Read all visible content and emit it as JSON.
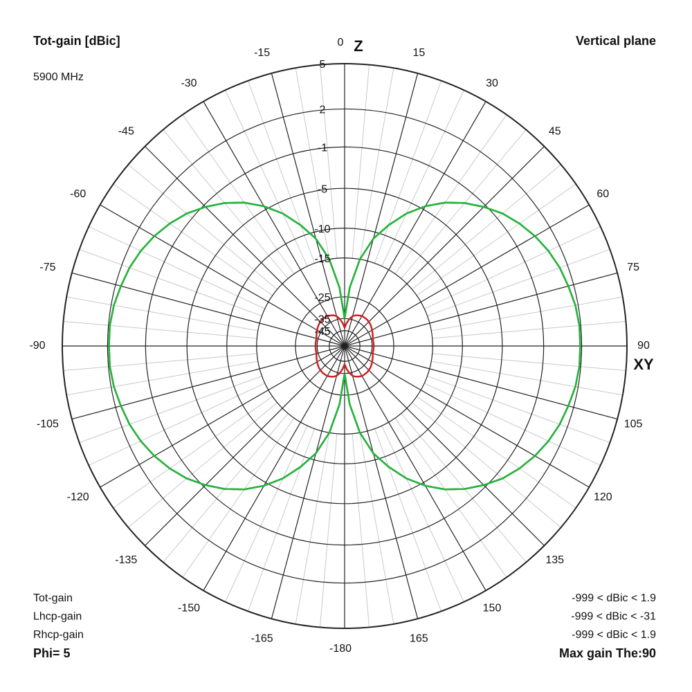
{
  "chart_data": {
    "type": "polar",
    "title": "Tot-gain [dBic]",
    "subtitle": "5900 MHz",
    "plane": "Vertical plane",
    "axis_labels": {
      "top": "Z",
      "right": "XY"
    },
    "rticks": [
      5,
      2,
      -1,
      -5,
      -10,
      -15,
      -25,
      -35,
      -45
    ],
    "thetaticks": [
      0,
      15,
      30,
      45,
      60,
      75,
      90,
      105,
      120,
      135,
      150,
      165,
      -180,
      -165,
      -150,
      -135,
      -120,
      -105,
      -90,
      -75,
      -60,
      -45,
      -30,
      -15
    ],
    "theta": [
      -180,
      -175,
      -170,
      -165,
      -160,
      -155,
      -150,
      -145,
      -140,
      -135,
      -130,
      -125,
      -120,
      -115,
      -110,
      -105,
      -100,
      -95,
      -90,
      -85,
      -80,
      -75,
      -70,
      -65,
      -60,
      -55,
      -50,
      -45,
      -40,
      -35,
      -30,
      -25,
      -20,
      -15,
      -10,
      -5,
      0,
      5,
      10,
      15,
      20,
      25,
      30,
      35,
      40,
      45,
      50,
      55,
      60,
      65,
      70,
      75,
      80,
      85,
      90,
      95,
      100,
      105,
      110,
      115,
      120,
      125,
      130,
      135,
      140,
      145,
      150,
      155,
      160,
      165,
      170,
      175,
      180
    ],
    "series": [
      {
        "name": "Rhcp-gain",
        "color": "#3340a8",
        "range": "-999 < dBic < 1.9",
        "values": [
          -35,
          -22,
          -15,
          -11,
          -8.5,
          -6.3,
          -4.6,
          -3.2,
          -2.1,
          -1.2,
          -0.4,
          0.2,
          0.7,
          1.1,
          1.4,
          1.6,
          1.8,
          1.9,
          1.9,
          1.9,
          1.8,
          1.6,
          1.4,
          1.1,
          0.7,
          0.2,
          -0.4,
          -1.2,
          -2.1,
          -3.2,
          -4.6,
          -6.3,
          -8.5,
          -11,
          -15,
          -22,
          -35,
          -22,
          -15,
          -11,
          -8.5,
          -6.3,
          -4.6,
          -3.2,
          -2.1,
          -1.2,
          -0.4,
          0.2,
          0.7,
          1.1,
          1.4,
          1.6,
          1.8,
          1.9,
          1.9,
          1.9,
          1.8,
          1.6,
          1.4,
          1.1,
          0.7,
          0.2,
          -0.4,
          -1.2,
          -2.1,
          -3.2,
          -4.6,
          -6.3,
          -8.5,
          -11,
          -15,
          -22,
          -35
        ]
      },
      {
        "name": "Lhcp-gain",
        "color": "#cc2222",
        "range": "-999 < dBic < -31",
        "values": [
          -42,
          -38,
          -35,
          -33,
          -32,
          -31.5,
          -31,
          -31,
          -31,
          -31.2,
          -31.5,
          -32,
          -32.5,
          -33,
          -33.5,
          -34,
          -34,
          -34,
          -34,
          -34,
          -34,
          -34,
          -33.5,
          -33,
          -32.5,
          -32,
          -31.5,
          -31.2,
          -31,
          -31,
          -31,
          -31.5,
          -32,
          -33,
          -35,
          -38,
          -42,
          -38,
          -35,
          -33,
          -32,
          -31.5,
          -31,
          -31,
          -31,
          -31.2,
          -31.5,
          -32,
          -32.5,
          -33,
          -33.5,
          -34,
          -34,
          -34,
          -34,
          -34,
          -34,
          -34,
          -33.5,
          -33,
          -32.5,
          -32,
          -31.5,
          -31.2,
          -31,
          -31,
          -31,
          -31.5,
          -32,
          -33,
          -35,
          -38,
          -42
        ]
      },
      {
        "name": "Tot-gain",
        "color": "#22b833",
        "range": "-999 < dBic < 1.9",
        "values": [
          -35,
          -22,
          -15,
          -11,
          -8.5,
          -6.3,
          -4.6,
          -3.2,
          -2.1,
          -1.2,
          -0.4,
          0.2,
          0.7,
          1.1,
          1.4,
          1.6,
          1.8,
          1.9,
          1.9,
          1.9,
          1.8,
          1.6,
          1.4,
          1.1,
          0.7,
          0.2,
          -0.4,
          -1.2,
          -2.1,
          -3.2,
          -4.6,
          -6.3,
          -8.5,
          -11,
          -15,
          -22,
          -35,
          -22,
          -15,
          -11,
          -8.5,
          -6.3,
          -4.6,
          -3.2,
          -2.1,
          -1.2,
          -0.4,
          0.2,
          0.7,
          1.1,
          1.4,
          1.6,
          1.8,
          1.9,
          1.9,
          1.9,
          1.8,
          1.6,
          1.4,
          1.1,
          0.7,
          0.2,
          -0.4,
          -1.2,
          -2.1,
          -3.2,
          -4.6,
          -6.3,
          -8.5,
          -11,
          -15,
          -22,
          -35
        ]
      }
    ],
    "footer_left": "Phi= 5",
    "footer_right": "Max gain The:90"
  }
}
